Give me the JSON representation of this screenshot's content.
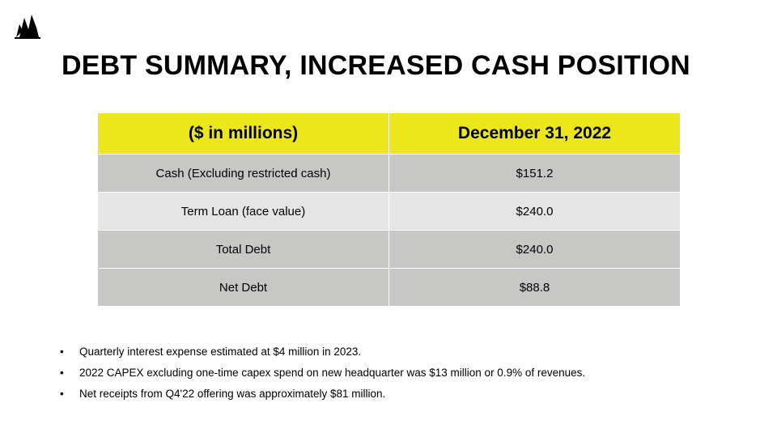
{
  "header": {
    "title": "DEBT SUMMARY, INCREASED CASH POSITION",
    "logo_icon": "sails-logo-icon"
  },
  "table": {
    "headers": [
      "($ in millions)",
      "December 31, 2022"
    ],
    "rows": [
      {
        "label": "Cash (Excluding restricted cash)",
        "value": "$151.2"
      },
      {
        "label": "Term Loan (face value)",
        "value": "$240.0"
      },
      {
        "label": "Total Debt",
        "value": "$240.0"
      },
      {
        "label": "Net Debt",
        "value": "$88.8"
      }
    ]
  },
  "notes": {
    "bullet": "•",
    "items": [
      "Quarterly interest expense estimated at $4 million in 2023.",
      "2022 CAPEX excluding one-time capex spend on new headquarter was $13 million or 0.9% of revenues.",
      "Net receipts from Q4'22 offering was approximately $81 million."
    ]
  },
  "colors": {
    "header_fill": "#ece71b",
    "row_dark": "#c7c7c6",
    "row_light": "#e6e5e5"
  }
}
